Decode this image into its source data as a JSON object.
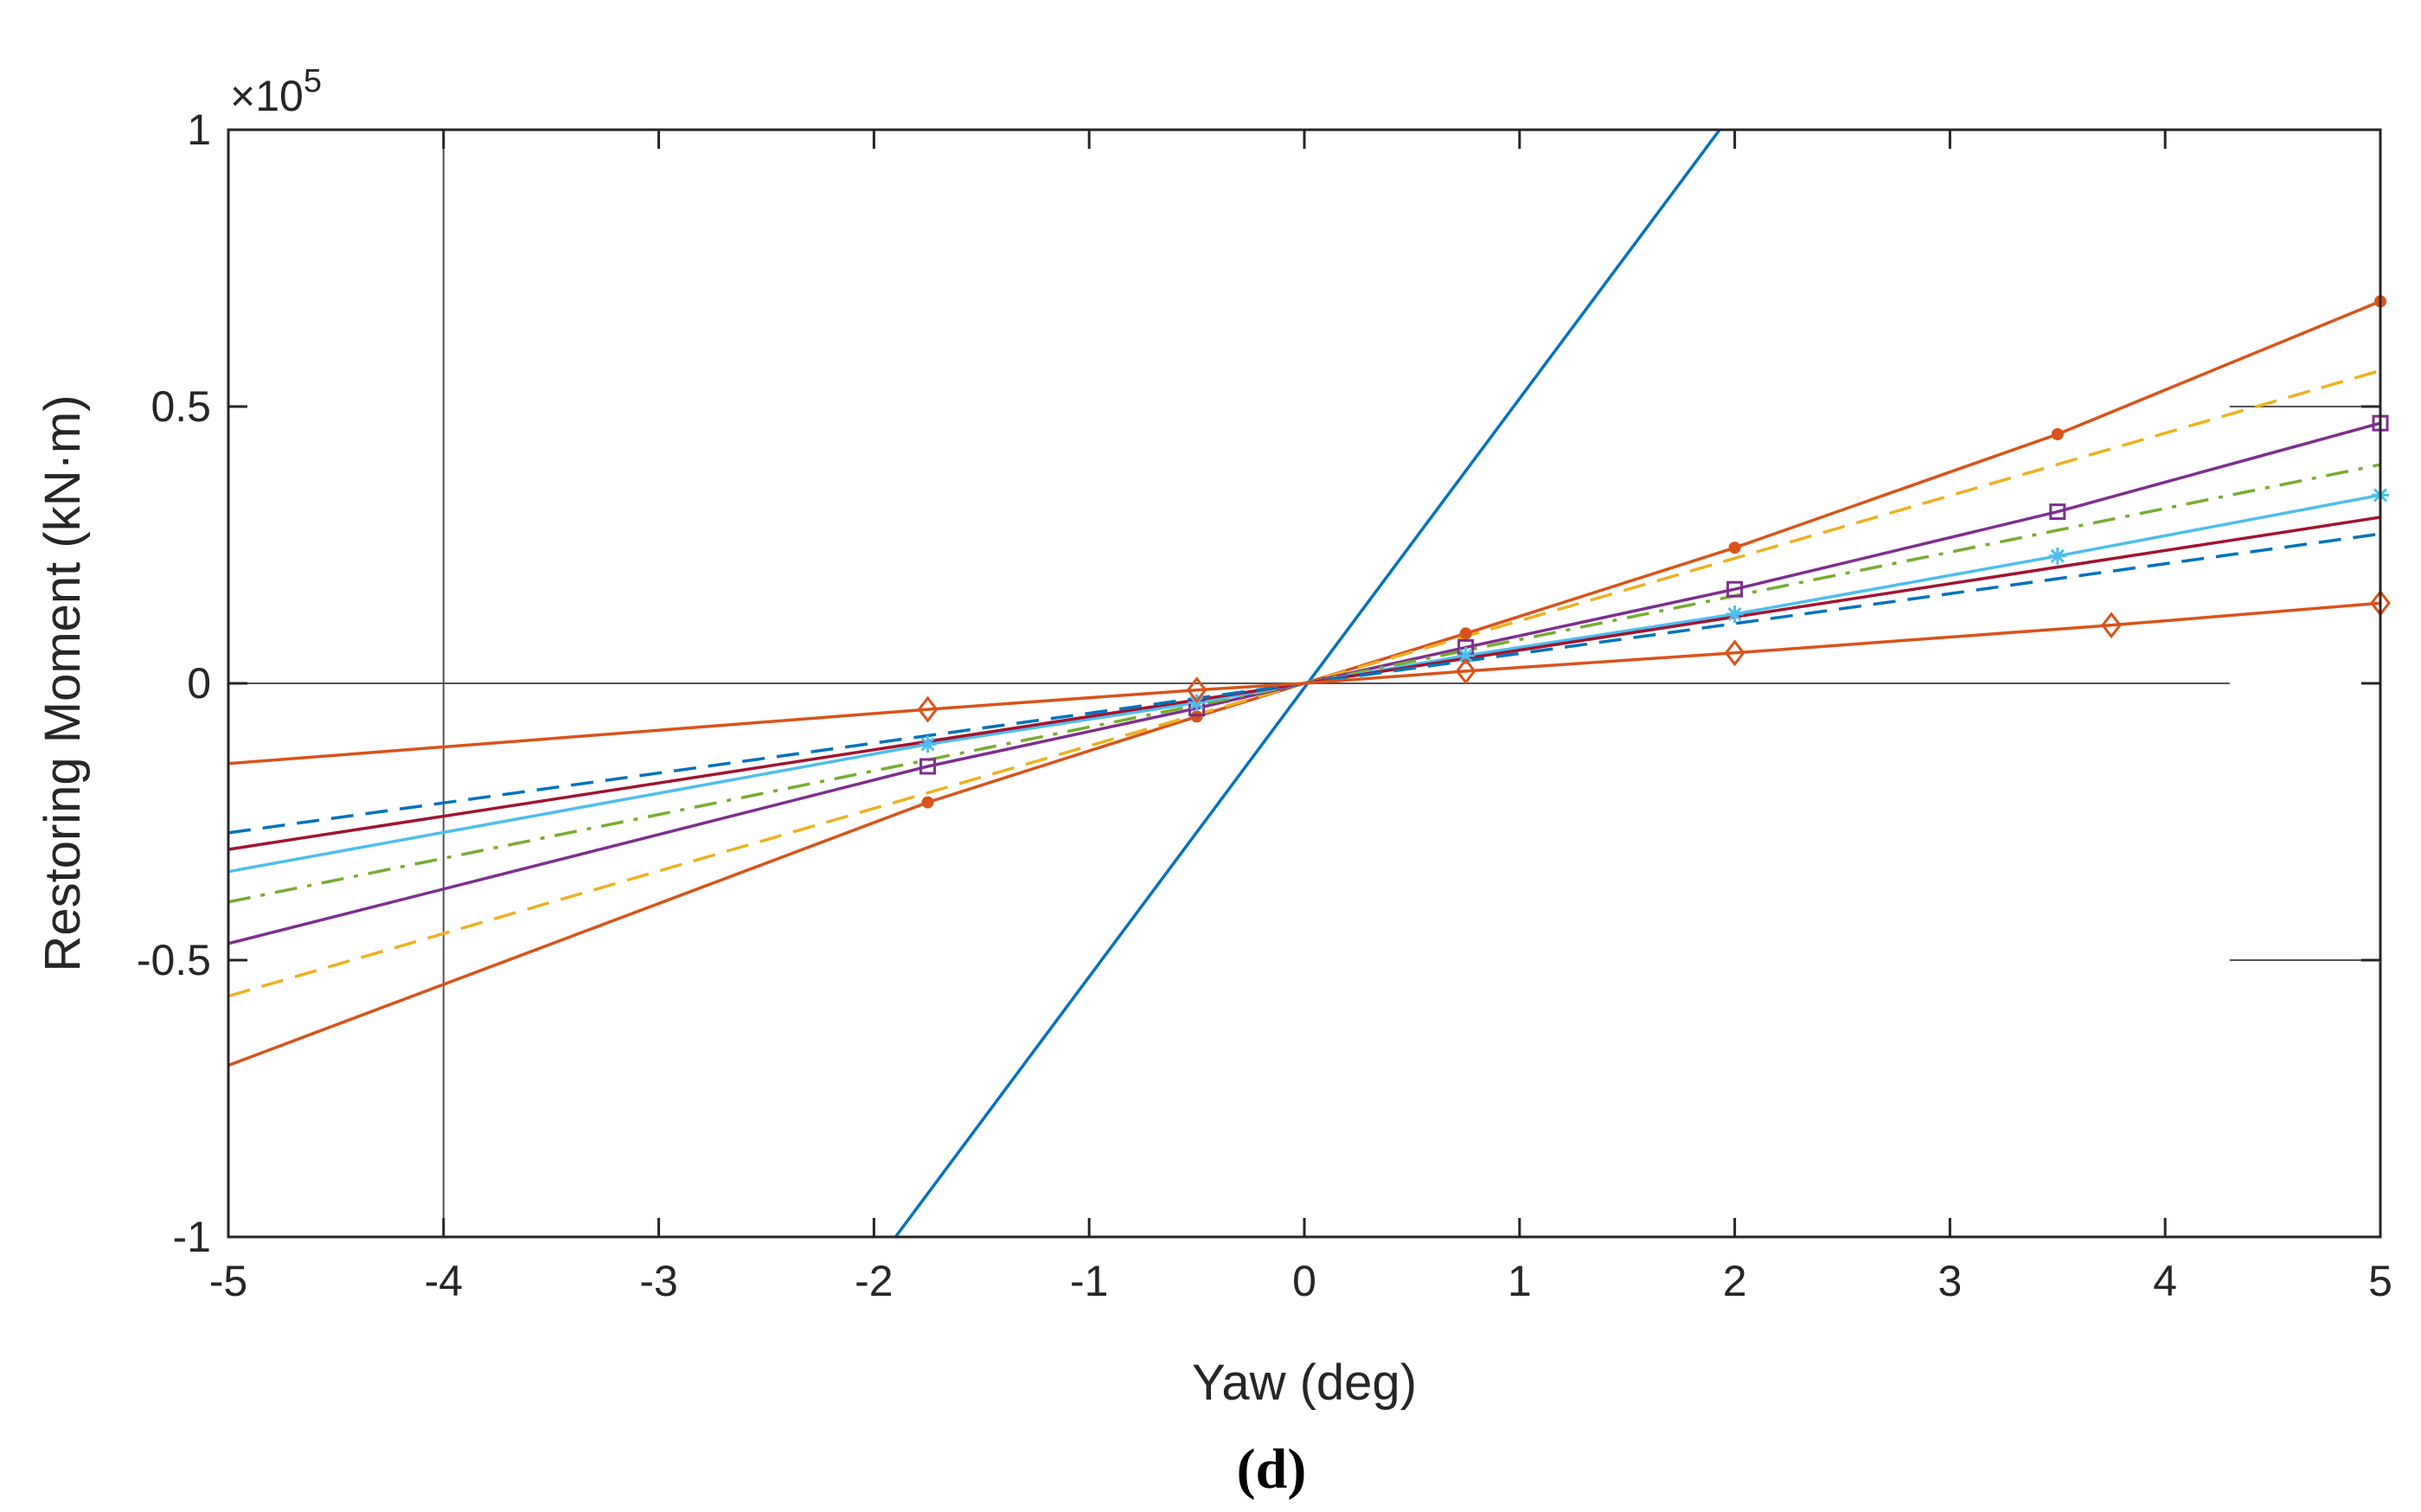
{
  "chart_data": {
    "type": "line",
    "title": "",
    "caption": "(d)",
    "xlabel": "Yaw (deg)",
    "ylabel": "Restoring Moment (kN·m)",
    "y_multiplier": {
      "prefix": "×10",
      "exponent": "5"
    },
    "xlim": [
      -5,
      5
    ],
    "ylim": [
      -1,
      1
    ],
    "xticks": [
      -5,
      -4,
      -3,
      -2,
      -1,
      0,
      1,
      2,
      3,
      4,
      5
    ],
    "xtick_labels": [
      "-5",
      "-4",
      "-3",
      "-2",
      "-1",
      "0",
      "1",
      "2",
      "3",
      "4",
      "5"
    ],
    "yticks": [
      -1,
      -0.5,
      0,
      0.5,
      1
    ],
    "ytick_labels": [
      "-1",
      "-0.5",
      "0",
      "0.5",
      "1"
    ],
    "grid": false,
    "reference_lines": [
      {
        "orientation": "vertical",
        "value": -4,
        "color": "#555555"
      },
      {
        "orientation": "horizontal",
        "value": 0,
        "from": -5,
        "to": 4.3,
        "color": "#555555"
      },
      {
        "orientation": "horizontal",
        "value": 0.5,
        "from": 4.3,
        "to": 5,
        "color": "#555555"
      },
      {
        "orientation": "horizontal",
        "value": -0.5,
        "from": 4.3,
        "to": 5,
        "color": "#555555"
      }
    ],
    "series": [
      {
        "name": "series-1",
        "color": "#0072BD",
        "dash": "solid",
        "marker": "none",
        "x": [
          -1.9,
          1.93
        ],
        "y": [
          -1.0,
          1.0
        ]
      },
      {
        "name": "series-2",
        "color": "#D95319",
        "dash": "solid",
        "marker": "dot",
        "x": [
          -5,
          -1.75,
          -0.5,
          0,
          0.75,
          2,
          3.5,
          5
        ],
        "y": [
          -0.69,
          -0.215,
          -0.06,
          0,
          0.09,
          0.245,
          0.45,
          0.69
        ]
      },
      {
        "name": "series-3",
        "color": "#EDB120",
        "dash": "dashed",
        "marker": "none",
        "x": [
          -5,
          0,
          5
        ],
        "y": [
          -0.565,
          0,
          0.565
        ]
      },
      {
        "name": "series-4",
        "color": "#7E2F8E",
        "dash": "solid",
        "marker": "square",
        "x": [
          -5,
          -1.75,
          -0.5,
          0,
          0.75,
          2,
          3.5,
          5
        ],
        "y": [
          -0.47,
          -0.15,
          -0.045,
          0,
          0.065,
          0.17,
          0.31,
          0.47
        ]
      },
      {
        "name": "series-5",
        "color": "#77AC30",
        "dash": "dashdot",
        "marker": "none",
        "x": [
          -5,
          0,
          5
        ],
        "y": [
          -0.395,
          0,
          0.395
        ]
      },
      {
        "name": "series-6",
        "color": "#4DBEEE",
        "dash": "solid",
        "marker": "star",
        "x": [
          -5,
          -1.75,
          -0.5,
          0,
          0.75,
          2,
          3.5,
          5
        ],
        "y": [
          -0.34,
          -0.11,
          -0.035,
          0,
          0.05,
          0.125,
          0.23,
          0.34
        ]
      },
      {
        "name": "series-7",
        "color": "#A2142F",
        "dash": "solid",
        "marker": "none",
        "x": [
          -5,
          0,
          5
        ],
        "y": [
          -0.3,
          0,
          0.3
        ]
      },
      {
        "name": "series-8",
        "color": "#0072BD",
        "dash": "dashed",
        "marker": "none",
        "x": [
          -5,
          0,
          5
        ],
        "y": [
          -0.27,
          0,
          0.27
        ]
      },
      {
        "name": "series-9",
        "color": "#D95319",
        "dash": "solid",
        "marker": "diamond",
        "x": [
          -5,
          -1.75,
          -0.5,
          0,
          0.75,
          2,
          3.75,
          5
        ],
        "y": [
          -0.145,
          -0.047,
          -0.012,
          0,
          0.022,
          0.055,
          0.105,
          0.145
        ]
      }
    ]
  }
}
